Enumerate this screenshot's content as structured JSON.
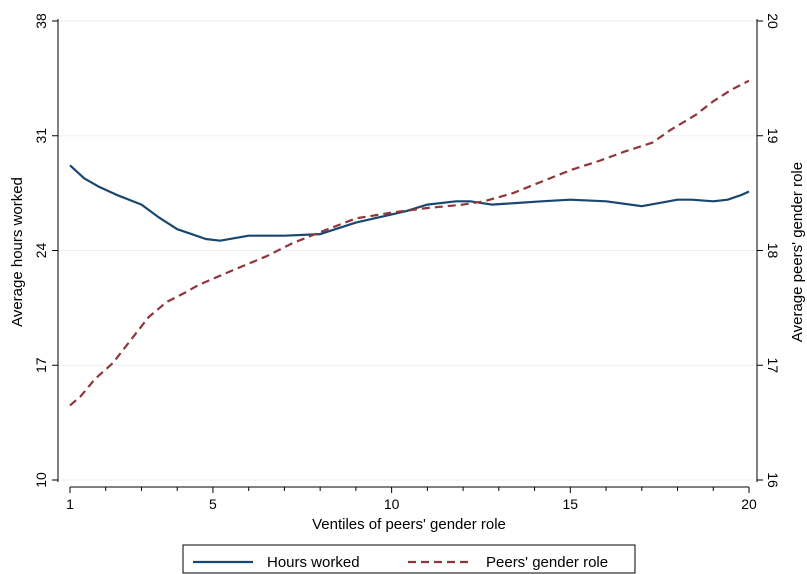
{
  "chart_data": {
    "type": "line",
    "xlabel": "Ventiles of peers' gender role",
    "ylabel_left": "Average hours worked",
    "ylabel_right": "Average peers' gender role",
    "x_ticks": [
      1,
      5,
      10,
      15,
      20
    ],
    "x_minor_ticks": [
      2,
      3,
      4,
      6,
      7,
      8,
      9,
      11,
      12,
      13,
      14,
      16,
      17,
      18,
      19
    ],
    "xlim": [
      1,
      20
    ],
    "ylim_left": [
      10,
      38
    ],
    "y_ticks_left": [
      10,
      17,
      24,
      31,
      38
    ],
    "ylim_right": [
      16,
      20
    ],
    "y_ticks_right": [
      16,
      17,
      18,
      19,
      20
    ],
    "grid": "horizontal",
    "legend_position": "bottom",
    "series": [
      {
        "name": "Hours worked",
        "axis": "left",
        "color": "#1a476f",
        "style": "solid",
        "x": [
          1,
          1.4,
          1.8,
          2.3,
          3.0,
          3.5,
          4.0,
          4.4,
          4.8,
          5.2,
          6.0,
          7.0,
          8.0,
          9.0,
          9.6,
          10.4,
          11.0,
          11.8,
          12.2,
          12.8,
          13.5,
          14.2,
          15.0,
          16.0,
          17.0,
          18.0,
          18.4,
          19.0,
          19.4,
          19.8,
          20.0
        ],
        "values": [
          29.2,
          28.4,
          27.9,
          27.4,
          26.8,
          26.0,
          25.3,
          25.0,
          24.7,
          24.6,
          24.9,
          24.9,
          25.0,
          25.7,
          26.0,
          26.4,
          26.8,
          27.0,
          27.0,
          26.8,
          26.9,
          27.0,
          27.1,
          27.0,
          26.7,
          27.1,
          27.1,
          27.0,
          27.1,
          27.4,
          27.6
        ]
      },
      {
        "name": "Peers' gender role",
        "axis": "right",
        "color": "#90353b",
        "style": "dashed",
        "x": [
          1,
          1.3,
          1.7,
          2.2,
          2.7,
          3.2,
          3.7,
          4.2,
          4.6,
          5.2,
          5.8,
          6.5,
          7.2,
          8.0,
          9.0,
          10.0,
          11.0,
          12.0,
          12.6,
          13.4,
          14.2,
          15.0,
          15.8,
          16.5,
          17.3,
          17.8,
          18.5,
          19.0,
          19.5,
          20.0
        ],
        "values": [
          16.65,
          16.73,
          16.88,
          17.02,
          17.22,
          17.42,
          17.55,
          17.63,
          17.7,
          17.78,
          17.86,
          17.95,
          18.06,
          18.16,
          18.28,
          18.33,
          18.37,
          18.4,
          18.43,
          18.5,
          18.6,
          18.7,
          18.78,
          18.86,
          18.94,
          19.05,
          19.18,
          19.3,
          19.4,
          19.48
        ]
      }
    ]
  }
}
